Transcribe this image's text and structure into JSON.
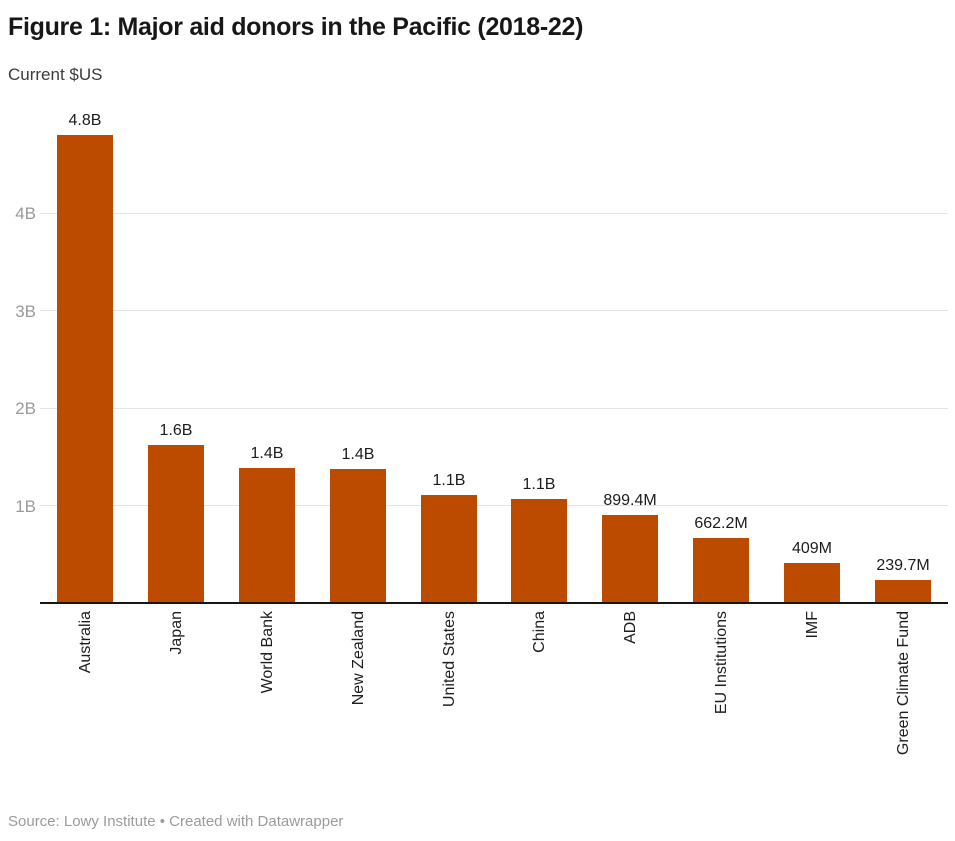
{
  "header": {
    "title": "Figure 1: Major aid donors in the Pacific (2018-22)",
    "subtitle": "Current $US"
  },
  "footer": {
    "text": "Source: Lowy Institute • Created with Datawrapper"
  },
  "colors": {
    "bar": "#bc4b00",
    "grid": "#e4e4e4",
    "axis_line": "#161616",
    "tick_label": "#9a9a9a",
    "label_text": "#1c1c1c",
    "footer_text": "#9b9b9b"
  },
  "chart_data": {
    "type": "bar",
    "title": "Figure 1: Major aid donors in the Pacific (2018-22)",
    "subtitle": "Current $US",
    "unit": "Current $US",
    "categories": [
      "Australia",
      "Japan",
      "World Bank",
      "New Zealand",
      "United States",
      "China",
      "ADB",
      "EU Institutions",
      "IMF",
      "Green Climate Fund"
    ],
    "values_billions_usd": [
      4.8,
      1.62,
      1.38,
      1.37,
      1.11,
      1.07,
      0.8994,
      0.6622,
      0.409,
      0.2397
    ],
    "value_labels": [
      "4.8B",
      "1.6B",
      "1.4B",
      "1.4B",
      "1.1B",
      "1.1B",
      "899.4M",
      "662.2M",
      "409M",
      "239.7M"
    ],
    "y_axis": {
      "ticks": [
        {
          "value": 1,
          "label": "1B"
        },
        {
          "value": 2,
          "label": "2B"
        },
        {
          "value": 3,
          "label": "3B"
        },
        {
          "value": 4,
          "label": "4B"
        }
      ],
      "range": [
        0,
        4.9
      ]
    },
    "bar_color": "#bc4b00",
    "grid": "horizontal",
    "legend": "none",
    "x_label_rotation": -90,
    "source": "Lowy Institute",
    "credit": "Created with Datawrapper"
  }
}
